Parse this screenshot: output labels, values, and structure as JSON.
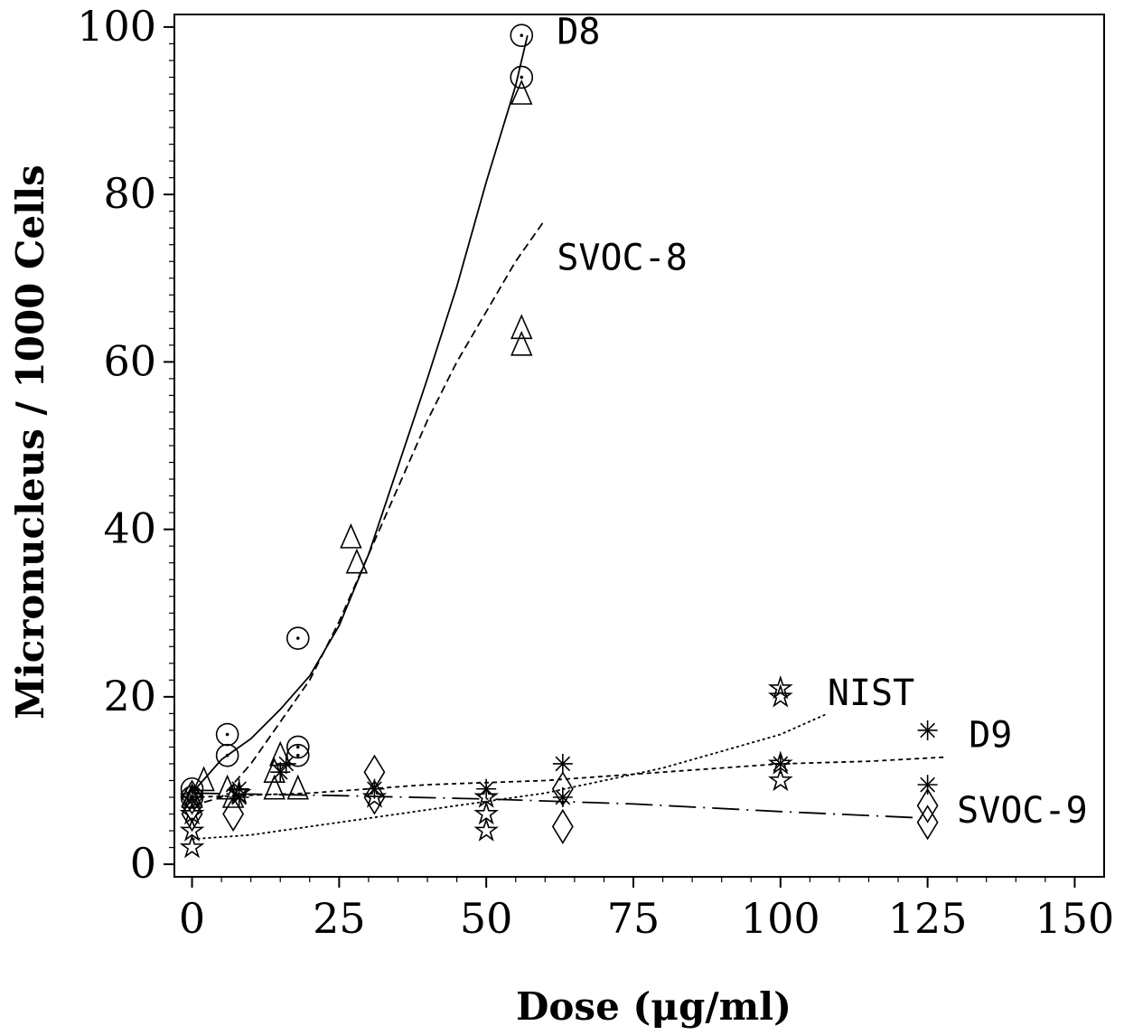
{
  "chart_data": {
    "type": "scatter",
    "xlabel": "Dose (μg/ml)",
    "ylabel": "Micronucleus / 1000 Cells",
    "xlim": [
      -3,
      155
    ],
    "ylim": [
      -1.5,
      101.5
    ],
    "x_ticks": [
      0,
      25,
      50,
      75,
      100,
      125,
      150
    ],
    "y_ticks": [
      0,
      20,
      40,
      60,
      80,
      100
    ],
    "grid": false,
    "legend": "none",
    "series": [
      {
        "name": "D8",
        "line_style": "solid",
        "marker": "circle-dot",
        "points": [
          [
            0,
            9
          ],
          [
            0,
            8
          ],
          [
            6,
            15.5
          ],
          [
            6,
            13
          ],
          [
            18,
            27
          ],
          [
            18,
            14
          ],
          [
            18,
            13
          ],
          [
            56,
            99
          ],
          [
            56,
            94
          ]
        ],
        "curve": [
          [
            0,
            8.5
          ],
          [
            5,
            12.5
          ],
          [
            10,
            15
          ],
          [
            15,
            18.5
          ],
          [
            20,
            22.5
          ],
          [
            25,
            28.5
          ],
          [
            30,
            37
          ],
          [
            35,
            47.5
          ],
          [
            40,
            58
          ],
          [
            45,
            69
          ],
          [
            50,
            81.5
          ],
          [
            55,
            93
          ],
          [
            57,
            99
          ]
        ]
      },
      {
        "name": "SVOC-8",
        "line_style": "dashed",
        "marker": "triangle",
        "points": [
          [
            0,
            8
          ],
          [
            2,
            10
          ],
          [
            6,
            9
          ],
          [
            7,
            8
          ],
          [
            14,
            11
          ],
          [
            14,
            9
          ],
          [
            15,
            13
          ],
          [
            18,
            9
          ],
          [
            27,
            39
          ],
          [
            28,
            36
          ],
          [
            56,
            64
          ],
          [
            56,
            62
          ],
          [
            56,
            92
          ]
        ],
        "curve": [
          [
            0,
            7
          ],
          [
            5,
            8
          ],
          [
            10,
            12
          ],
          [
            15,
            17
          ],
          [
            20,
            22
          ],
          [
            25,
            29
          ],
          [
            30,
            37
          ],
          [
            35,
            45
          ],
          [
            40,
            53
          ],
          [
            45,
            60
          ],
          [
            50,
            66
          ],
          [
            55,
            72
          ],
          [
            60,
            77
          ]
        ]
      },
      {
        "name": "D9",
        "line_style": "short-dashed",
        "marker": "asterisk",
        "points": [
          [
            0,
            8
          ],
          [
            8,
            9
          ],
          [
            8,
            8
          ],
          [
            15,
            11
          ],
          [
            16,
            12
          ],
          [
            31,
            9
          ],
          [
            50,
            9
          ],
          [
            63,
            12
          ],
          [
            63,
            8
          ],
          [
            100,
            12
          ],
          [
            125,
            16
          ],
          [
            125,
            9.5
          ]
        ],
        "curve": [
          [
            0,
            8
          ],
          [
            20,
            8.5
          ],
          [
            40,
            9.5
          ],
          [
            60,
            10
          ],
          [
            80,
            11
          ],
          [
            100,
            12
          ],
          [
            115,
            12.3
          ],
          [
            128,
            12.8
          ]
        ]
      },
      {
        "name": "NIST",
        "line_style": "dotted",
        "marker": "star",
        "points": [
          [
            0,
            2
          ],
          [
            0,
            4
          ],
          [
            0,
            6
          ],
          [
            0,
            8
          ],
          [
            8,
            8.5
          ],
          [
            31,
            8
          ],
          [
            50,
            8
          ],
          [
            50,
            6
          ],
          [
            50,
            4
          ],
          [
            100,
            21
          ],
          [
            100,
            20
          ],
          [
            100,
            12
          ],
          [
            100,
            10
          ]
        ],
        "curve": [
          [
            0,
            3
          ],
          [
            10,
            3.5
          ],
          [
            20,
            4.5
          ],
          [
            30,
            5.5
          ],
          [
            40,
            6.5
          ],
          [
            50,
            7.5
          ],
          [
            60,
            8.5
          ],
          [
            70,
            10
          ],
          [
            80,
            11.5
          ],
          [
            90,
            13.5
          ],
          [
            100,
            15.5
          ],
          [
            108,
            18
          ]
        ]
      },
      {
        "name": "SVOC-9",
        "line_style": "long-dashed",
        "marker": "diamond",
        "points": [
          [
            0,
            8
          ],
          [
            0,
            7
          ],
          [
            0,
            6
          ],
          [
            7,
            6
          ],
          [
            31,
            11
          ],
          [
            31,
            8
          ],
          [
            63,
            9
          ],
          [
            63,
            4.5
          ],
          [
            125,
            7
          ],
          [
            125,
            5
          ]
        ],
        "curve": [
          [
            0,
            8.5
          ],
          [
            25,
            8.2
          ],
          [
            50,
            7.8
          ],
          [
            75,
            7.2
          ],
          [
            100,
            6.3
          ],
          [
            125,
            5.5
          ]
        ]
      }
    ],
    "annotations": [
      {
        "text": "D8",
        "x": 62,
        "y": 98
      },
      {
        "text": "SVOC-8",
        "x": 62,
        "y": 71
      },
      {
        "text": "NIST",
        "x": 108,
        "y": 19
      },
      {
        "text": "D9",
        "x": 132,
        "y": 14
      },
      {
        "text": "SVOC-9",
        "x": 130,
        "y": 5
      }
    ]
  }
}
